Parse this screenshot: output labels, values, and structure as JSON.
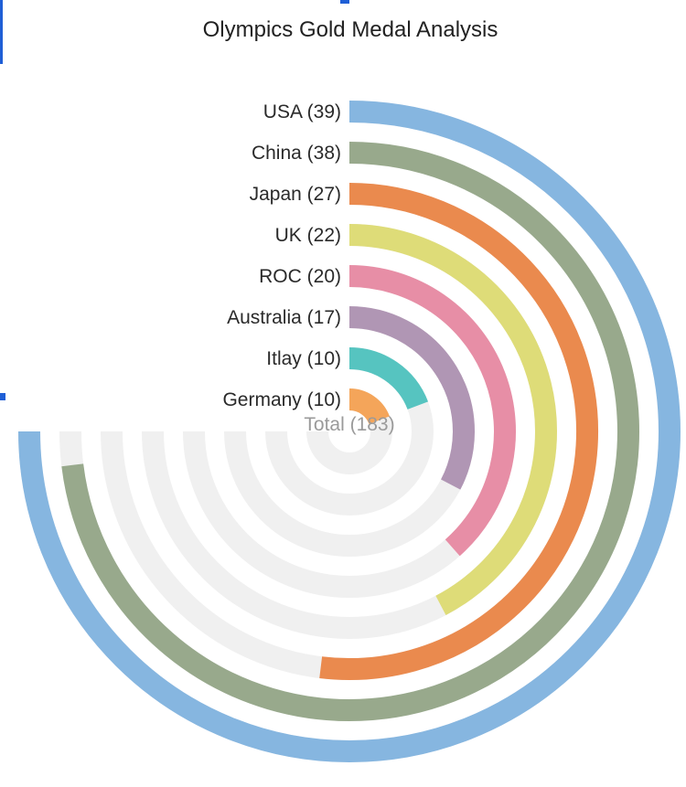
{
  "chart_data": {
    "type": "radial-bar",
    "title": "Olympics Gold Medal Analysis",
    "categories": [
      "USA",
      "China",
      "Japan",
      "UK",
      "ROC",
      "Australia",
      "Itlay",
      "Germany"
    ],
    "values": [
      39,
      38,
      27,
      22,
      20,
      17,
      10,
      10
    ],
    "labels": [
      "USA (39)",
      "China (38)",
      "Japan (27)",
      "UK (22)",
      "ROC (20)",
      "Australia (17)",
      "Itlay (10)",
      "Germany (10)"
    ],
    "colors": [
      "#86b6e0",
      "#98a98c",
      "#ea8a4e",
      "#dedc78",
      "#e78ea6",
      "#b096b4",
      "#56c4c0",
      "#f4a55a"
    ],
    "track_color": "#f0f0f0",
    "max": 39,
    "sweep_degrees": 270,
    "total_label": "Total (183)"
  }
}
